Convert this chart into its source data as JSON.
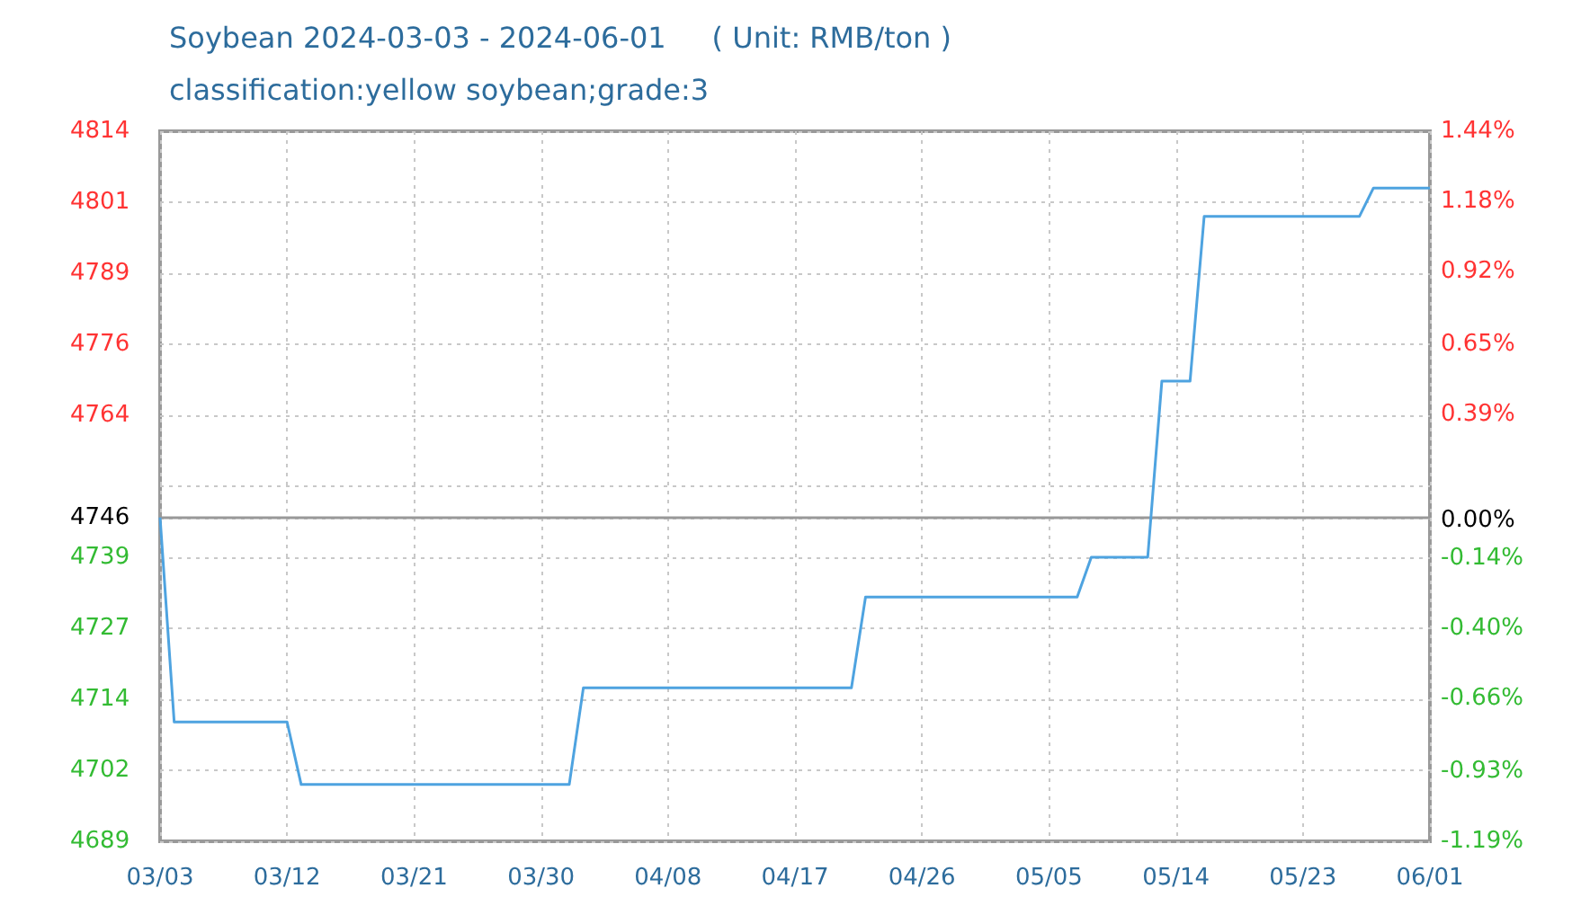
{
  "chart_data": {
    "type": "line",
    "title": "Soybean 2024-03-03 - 2024-06-01     ( Unit: RMB/ton )",
    "subtitle": "classification:yellow soybean;grade:3",
    "x": [
      "2024-03-03",
      "2024-03-04",
      "2024-03-12",
      "2024-03-13",
      "2024-04-01",
      "2024-04-02",
      "2024-04-21",
      "2024-04-22",
      "2024-05-07",
      "2024-05-08",
      "2024-05-12",
      "2024-05-13",
      "2024-05-15",
      "2024-05-16",
      "2024-05-27",
      "2024-05-28",
      "2024-06-01"
    ],
    "series": [
      {
        "color": "#4ea3e0",
        "values": [
          4746,
          4710,
          4710,
          4699,
          4699,
          4716,
          4716,
          4732,
          4732,
          4739,
          4739,
          4770,
          4770,
          4799,
          4799,
          4804,
          4804
        ]
      }
    ],
    "xlim": [
      "2024-03-03",
      "2024-06-01"
    ],
    "xticks": [
      {
        "value": "2024-03-03",
        "label": "03/03"
      },
      {
        "value": "2024-03-12",
        "label": "03/12"
      },
      {
        "value": "2024-03-21",
        "label": "03/21"
      },
      {
        "value": "2024-03-30",
        "label": "03/30"
      },
      {
        "value": "2024-04-08",
        "label": "04/08"
      },
      {
        "value": "2024-04-17",
        "label": "04/17"
      },
      {
        "value": "2024-04-26",
        "label": "04/26"
      },
      {
        "value": "2024-05-05",
        "label": "05/05"
      },
      {
        "value": "2024-05-14",
        "label": "05/14"
      },
      {
        "value": "2024-05-23",
        "label": "05/23"
      },
      {
        "value": "2024-06-01",
        "label": "06/01"
      }
    ],
    "ylim": [
      4689,
      4814
    ],
    "yticks": [
      4689,
      {
        "value": 4701.5,
        "label": "4702"
      },
      4714,
      {
        "value": 4726.5,
        "label": "4727"
      },
      4739,
      4746,
      {
        "value": 4751.5,
        "label": null
      },
      4764,
      {
        "value": 4776.5,
        "label": "4776"
      },
      4789,
      {
        "value": 4801.5,
        "label": "4801"
      },
      4814
    ],
    "y2lim": [
      -1.19,
      1.44
    ],
    "y2ticks": [
      {
        "value": -1.19,
        "label": "-1.19%"
      },
      {
        "value": -0.93,
        "label": "-0.93%"
      },
      {
        "value": -0.66,
        "label": "-0.66%"
      },
      {
        "value": -0.4,
        "label": "-0.40%"
      },
      {
        "value": -0.14,
        "label": "-0.14%"
      },
      {
        "value": 0,
        "label": "0.00%"
      },
      {
        "value": 0.39,
        "label": "0.39%"
      },
      {
        "value": 0.65,
        "label": "0.65%"
      },
      {
        "value": 0.92,
        "label": "0.92%"
      },
      {
        "value": 1.18,
        "label": "1.18%"
      },
      {
        "value": 1.44,
        "label": "1.44%"
      }
    ],
    "ref_lines": [
      {
        "axis": "y",
        "value": 4746,
        "color": "#999999"
      }
    ],
    "grid": true,
    "marker": "none",
    "line_style": "solid"
  }
}
